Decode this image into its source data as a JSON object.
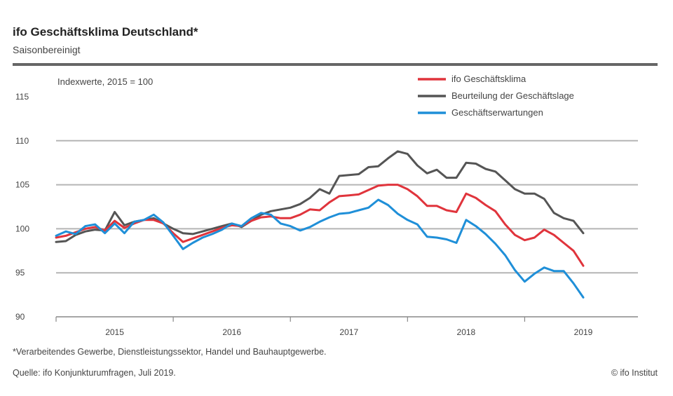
{
  "header": {
    "title": "ifo Geschäftsklima Deutschland*",
    "subtitle": "Saisonbereinigt"
  },
  "footer": {
    "footnote": "*Verarbeitendes Gewerbe, Dienstleistungssektor, Handel und Bauhauptgewerbe.",
    "source": "Quelle: ifo Konjunkturumfragen, Juli 2019.",
    "copyright": "© ifo Institut"
  },
  "chart_data": {
    "type": "line",
    "unit_label": "Indexwerte, 2015 = 100",
    "ylim": [
      90,
      115
    ],
    "yticks": [
      90,
      95,
      100,
      105,
      110,
      115
    ],
    "xlim": [
      "2015-01",
      "2019-07"
    ],
    "xticks": [
      {
        "label": "2015",
        "month": "2015-07"
      },
      {
        "label": "2016",
        "month": "2016-07"
      },
      {
        "label": "2017",
        "month": "2017-07"
      },
      {
        "label": "2018",
        "month": "2018-07"
      },
      {
        "label": "2019",
        "month": "2019-07"
      }
    ],
    "grid": true,
    "legend_position": "top-right",
    "series": [
      {
        "name": "ifo Geschäftsklima",
        "color": "#e0343c",
        "values": [
          [
            "2015-01",
            99.0
          ],
          [
            "2015-02",
            99.2
          ],
          [
            "2015-03",
            99.6
          ],
          [
            "2015-04",
            100.0
          ],
          [
            "2015-05",
            100.2
          ],
          [
            "2015-06",
            99.8
          ],
          [
            "2015-07",
            100.9
          ],
          [
            "2015-08",
            100.1
          ],
          [
            "2015-09",
            100.6
          ],
          [
            "2015-10",
            101.0
          ],
          [
            "2015-11",
            101.0
          ],
          [
            "2015-12",
            100.6
          ],
          [
            "2016-01",
            99.5
          ],
          [
            "2016-02",
            98.5
          ],
          [
            "2016-03",
            98.9
          ],
          [
            "2016-04",
            99.3
          ],
          [
            "2016-05",
            99.7
          ],
          [
            "2016-06",
            100.1
          ],
          [
            "2016-07",
            100.4
          ],
          [
            "2016-08",
            100.3
          ],
          [
            "2016-09",
            100.9
          ],
          [
            "2016-10",
            101.3
          ],
          [
            "2016-11",
            101.4
          ],
          [
            "2016-12",
            101.2
          ],
          [
            "2017-01",
            101.2
          ],
          [
            "2017-02",
            101.6
          ],
          [
            "2017-03",
            102.2
          ],
          [
            "2017-04",
            102.1
          ],
          [
            "2017-05",
            103.0
          ],
          [
            "2017-06",
            103.7
          ],
          [
            "2017-07",
            103.8
          ],
          [
            "2017-08",
            103.9
          ],
          [
            "2017-09",
            104.4
          ],
          [
            "2017-10",
            104.9
          ],
          [
            "2017-11",
            105.0
          ],
          [
            "2017-12",
            105.0
          ],
          [
            "2018-01",
            104.5
          ],
          [
            "2018-02",
            103.7
          ],
          [
            "2018-03",
            102.6
          ],
          [
            "2018-04",
            102.6
          ],
          [
            "2018-05",
            102.1
          ],
          [
            "2018-06",
            101.9
          ],
          [
            "2018-07",
            104.0
          ],
          [
            "2018-08",
            103.5
          ],
          [
            "2018-09",
            102.7
          ],
          [
            "2018-10",
            102.0
          ],
          [
            "2018-11",
            100.5
          ],
          [
            "2018-12",
            99.3
          ],
          [
            "2019-01",
            98.7
          ],
          [
            "2019-02",
            99.0
          ],
          [
            "2019-03",
            99.9
          ],
          [
            "2019-04",
            99.3
          ],
          [
            "2019-05",
            98.4
          ],
          [
            "2019-06",
            97.5
          ],
          [
            "2019-07",
            95.8
          ]
        ]
      },
      {
        "name": "Beurteilung der Geschäftslage",
        "color": "#555555",
        "values": [
          [
            "2015-01",
            98.5
          ],
          [
            "2015-02",
            98.6
          ],
          [
            "2015-03",
            99.3
          ],
          [
            "2015-04",
            99.7
          ],
          [
            "2015-05",
            99.9
          ],
          [
            "2015-06",
            99.8
          ],
          [
            "2015-07",
            101.9
          ],
          [
            "2015-08",
            100.4
          ],
          [
            "2015-09",
            100.8
          ],
          [
            "2015-10",
            101.0
          ],
          [
            "2015-11",
            101.2
          ],
          [
            "2015-12",
            100.6
          ],
          [
            "2016-01",
            100.0
          ],
          [
            "2016-02",
            99.5
          ],
          [
            "2016-03",
            99.4
          ],
          [
            "2016-04",
            99.7
          ],
          [
            "2016-05",
            100.0
          ],
          [
            "2016-06",
            100.3
          ],
          [
            "2016-07",
            100.6
          ],
          [
            "2016-08",
            100.2
          ],
          [
            "2016-09",
            100.9
          ],
          [
            "2016-10",
            101.6
          ],
          [
            "2016-11",
            102.0
          ],
          [
            "2016-12",
            102.2
          ],
          [
            "2017-01",
            102.4
          ],
          [
            "2017-02",
            102.8
          ],
          [
            "2017-03",
            103.5
          ],
          [
            "2017-04",
            104.5
          ],
          [
            "2017-05",
            104.0
          ],
          [
            "2017-06",
            106.0
          ],
          [
            "2017-07",
            106.1
          ],
          [
            "2017-08",
            106.2
          ],
          [
            "2017-09",
            107.0
          ],
          [
            "2017-10",
            107.1
          ],
          [
            "2017-11",
            108.0
          ],
          [
            "2017-12",
            108.8
          ],
          [
            "2018-01",
            108.5
          ],
          [
            "2018-02",
            107.2
          ],
          [
            "2018-03",
            106.3
          ],
          [
            "2018-04",
            106.7
          ],
          [
            "2018-05",
            105.8
          ],
          [
            "2018-06",
            105.8
          ],
          [
            "2018-07",
            107.5
          ],
          [
            "2018-08",
            107.4
          ],
          [
            "2018-09",
            106.8
          ],
          [
            "2018-10",
            106.5
          ],
          [
            "2018-11",
            105.5
          ],
          [
            "2018-12",
            104.5
          ],
          [
            "2019-01",
            104.0
          ],
          [
            "2019-02",
            104.0
          ],
          [
            "2019-03",
            103.4
          ],
          [
            "2019-04",
            101.8
          ],
          [
            "2019-05",
            101.2
          ],
          [
            "2019-06",
            100.9
          ],
          [
            "2019-07",
            99.5
          ]
        ]
      },
      {
        "name": "Geschäftserwartungen",
        "color": "#1f8fd8",
        "values": [
          [
            "2015-01",
            99.2
          ],
          [
            "2015-02",
            99.7
          ],
          [
            "2015-03",
            99.4
          ],
          [
            "2015-04",
            100.3
          ],
          [
            "2015-05",
            100.5
          ],
          [
            "2015-06",
            99.5
          ],
          [
            "2015-07",
            100.6
          ],
          [
            "2015-08",
            99.5
          ],
          [
            "2015-09",
            100.8
          ],
          [
            "2015-10",
            101.0
          ],
          [
            "2015-11",
            101.6
          ],
          [
            "2015-12",
            100.7
          ],
          [
            "2016-01",
            99.2
          ],
          [
            "2016-02",
            97.7
          ],
          [
            "2016-03",
            98.4
          ],
          [
            "2016-04",
            99.0
          ],
          [
            "2016-05",
            99.4
          ],
          [
            "2016-06",
            99.9
          ],
          [
            "2016-07",
            100.6
          ],
          [
            "2016-08",
            100.3
          ],
          [
            "2016-09",
            101.2
          ],
          [
            "2016-10",
            101.8
          ],
          [
            "2016-11",
            101.6
          ],
          [
            "2016-12",
            100.6
          ],
          [
            "2017-01",
            100.3
          ],
          [
            "2017-02",
            99.8
          ],
          [
            "2017-03",
            100.2
          ],
          [
            "2017-04",
            100.8
          ],
          [
            "2017-05",
            101.3
          ],
          [
            "2017-06",
            101.7
          ],
          [
            "2017-07",
            101.8
          ],
          [
            "2017-08",
            102.1
          ],
          [
            "2017-09",
            102.4
          ],
          [
            "2017-10",
            103.3
          ],
          [
            "2017-11",
            102.7
          ],
          [
            "2017-12",
            101.7
          ],
          [
            "2018-01",
            101.0
          ],
          [
            "2018-02",
            100.5
          ],
          [
            "2018-03",
            99.1
          ],
          [
            "2018-04",
            99.0
          ],
          [
            "2018-05",
            98.8
          ],
          [
            "2018-06",
            98.4
          ],
          [
            "2018-07",
            101.0
          ],
          [
            "2018-08",
            100.3
          ],
          [
            "2018-09",
            99.4
          ],
          [
            "2018-10",
            98.3
          ],
          [
            "2018-11",
            97.0
          ],
          [
            "2018-12",
            95.3
          ],
          [
            "2019-01",
            94.0
          ],
          [
            "2019-02",
            94.9
          ],
          [
            "2019-03",
            95.6
          ],
          [
            "2019-04",
            95.2
          ],
          [
            "2019-05",
            95.2
          ],
          [
            "2019-06",
            93.8
          ],
          [
            "2019-07",
            92.2
          ]
        ]
      }
    ]
  }
}
